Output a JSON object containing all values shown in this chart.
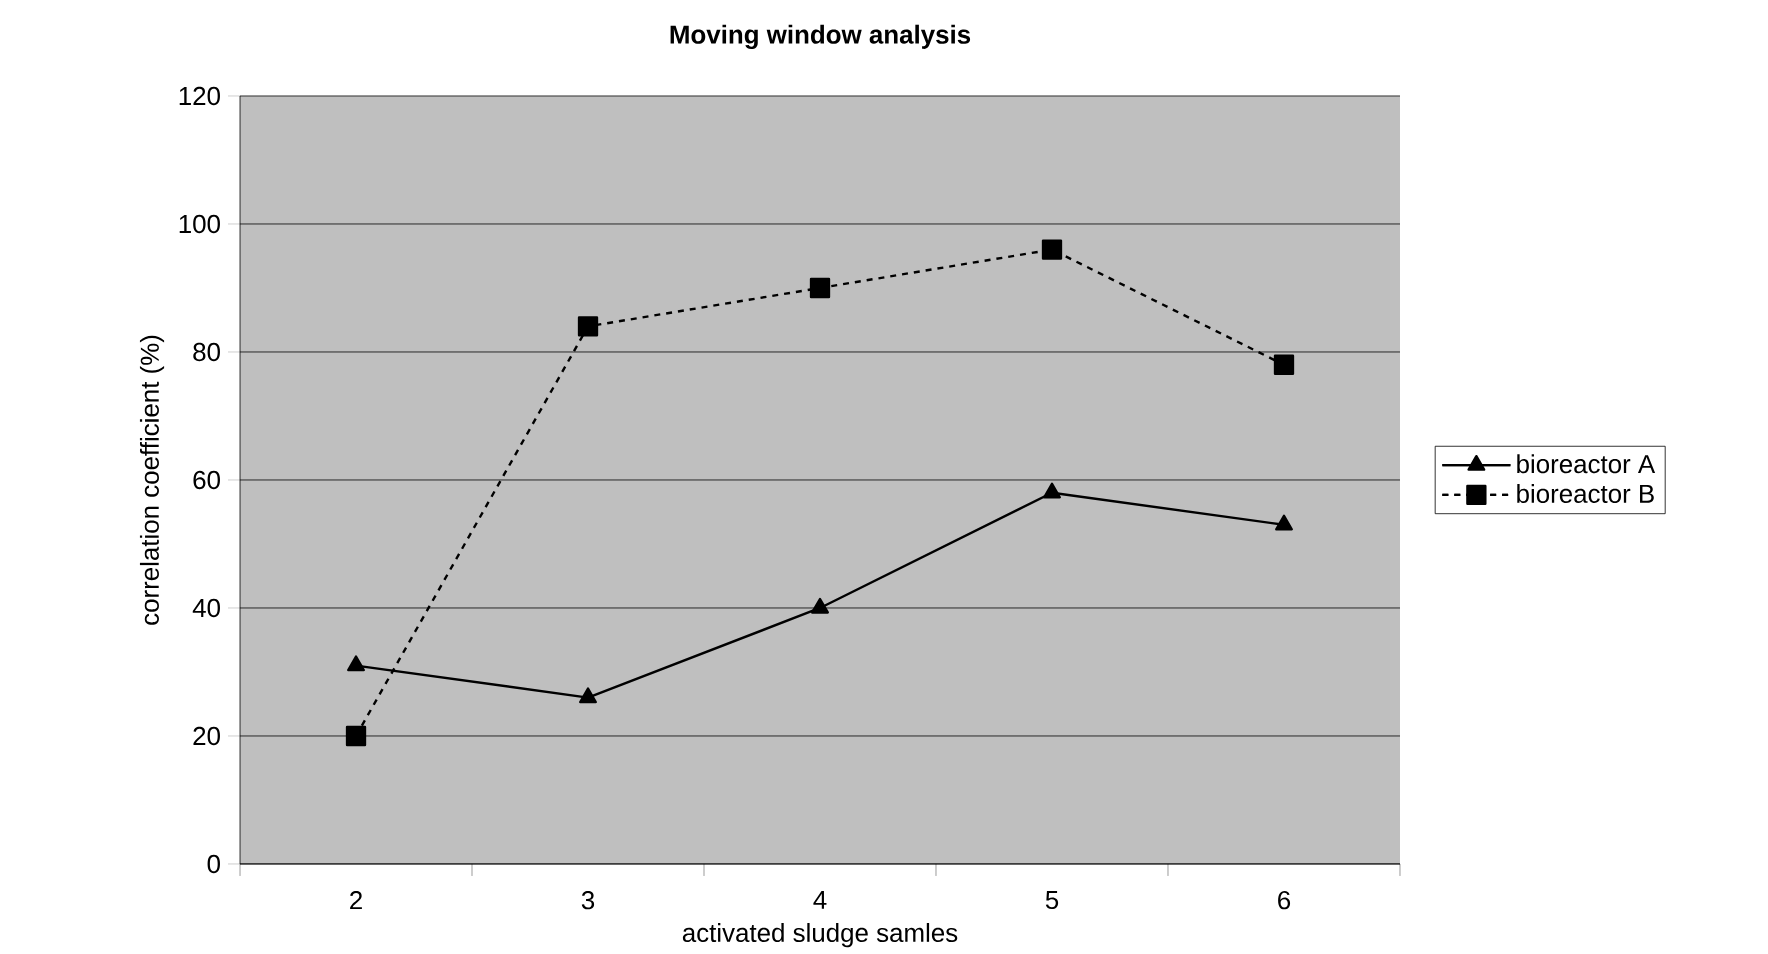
{
  "chart_data": {
    "type": "line",
    "title": "**Moving window analysis**",
    "xlabel": "activated sludge samles",
    "ylabel": "correlation coefficient (%)",
    "categories": [
      "2",
      "3",
      "4",
      "5",
      "6"
    ],
    "series": [
      {
        "name": "bioreactor A",
        "color": "#000000",
        "values": [
          31,
          26,
          40,
          58,
          53
        ],
        "marker": "triangle",
        "line_style": "solid"
      },
      {
        "name": "bioreactor B",
        "color": "#000000",
        "values": [
          20,
          84,
          90,
          96,
          78
        ],
        "marker": "square",
        "line_style": "dashed"
      }
    ],
    "ylim": [
      0,
      120
    ],
    "yticks": [
      0,
      20,
      40,
      60,
      80,
      100,
      120
    ],
    "grid": "y",
    "legend": "right"
  }
}
